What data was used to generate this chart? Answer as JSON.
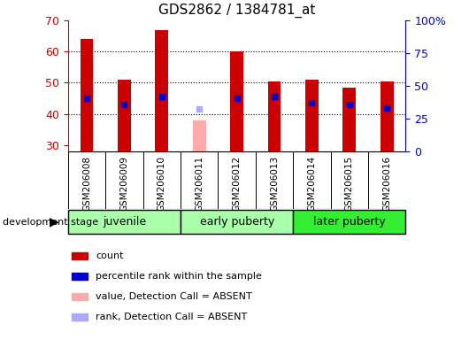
{
  "title": "GDS2862 / 1384781_at",
  "samples": [
    "GSM206008",
    "GSM206009",
    "GSM206010",
    "GSM206011",
    "GSM206012",
    "GSM206013",
    "GSM206014",
    "GSM206015",
    "GSM206016"
  ],
  "count_values": [
    64,
    51,
    67,
    null,
    60,
    50.5,
    51,
    48.5,
    50.5
  ],
  "rank_values": [
    45,
    43,
    45.5,
    null,
    45,
    45.5,
    43.5,
    43,
    42
  ],
  "absent_value": 38,
  "absent_rank": 41.5,
  "absent_index": 3,
  "ymin": 28,
  "ymax": 70,
  "y2min": 0,
  "y2max": 100,
  "yticks": [
    30,
    40,
    50,
    60,
    70
  ],
  "y2ticks": [
    0,
    25,
    50,
    75,
    100
  ],
  "y2ticklabels": [
    "0",
    "25",
    "50",
    "75",
    "100%"
  ],
  "group_defs": [
    [
      0,
      3,
      "juvenile",
      "#aaffaa"
    ],
    [
      3,
      6,
      "early puberty",
      "#aaffaa"
    ],
    [
      6,
      9,
      "later puberty",
      "#33ee33"
    ]
  ],
  "bar_color_red": "#cc0000",
  "bar_color_pink": "#ffaaaa",
  "rank_color_blue": "#0000cc",
  "rank_color_light_blue": "#aaaaff",
  "bar_width": 0.35,
  "tick_color_left": "#cc0000",
  "tick_color_right": "#0000cc",
  "xtick_bg_color": "#cccccc",
  "legend_items": [
    [
      "#cc0000",
      "count"
    ],
    [
      "#0000cc",
      "percentile rank within the sample"
    ],
    [
      "#ffaaaa",
      "value, Detection Call = ABSENT"
    ],
    [
      "#aaaaff",
      "rank, Detection Call = ABSENT"
    ]
  ],
  "grid_dotted_at": [
    40,
    50,
    60
  ],
  "fig_width": 5.3,
  "fig_height": 3.84
}
